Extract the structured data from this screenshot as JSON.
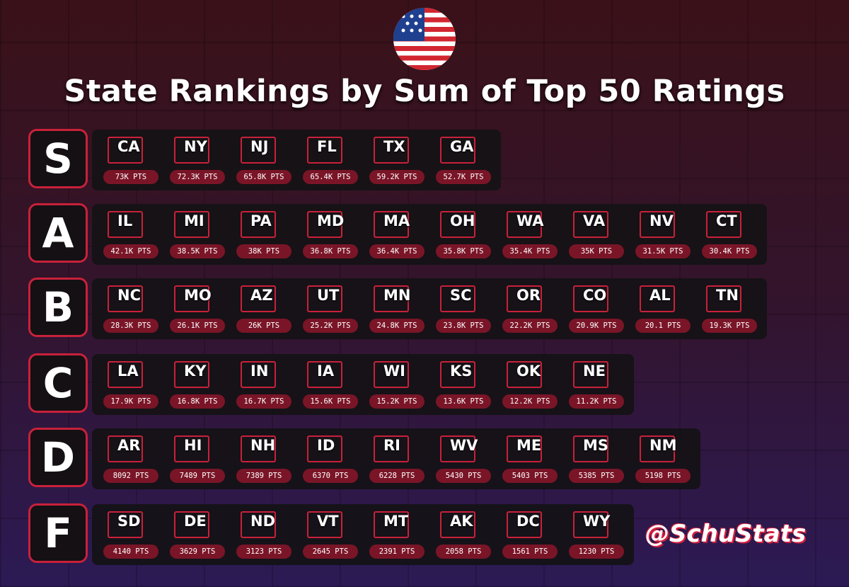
{
  "header": {
    "title": "State Rankings by Sum of Top 50 Ratings"
  },
  "tiers": [
    {
      "label": "S",
      "states": [
        {
          "code": "CA",
          "points": "73K PTS"
        },
        {
          "code": "NY",
          "points": "72.3K PTS"
        },
        {
          "code": "NJ",
          "points": "65.8K PTS"
        },
        {
          "code": "FL",
          "points": "65.4K PTS"
        },
        {
          "code": "TX",
          "points": "59.2K PTS"
        },
        {
          "code": "GA",
          "points": "52.7K PTS"
        }
      ]
    },
    {
      "label": "A",
      "states": [
        {
          "code": "IL",
          "points": "42.1K PTS"
        },
        {
          "code": "MI",
          "points": "38.5K PTS"
        },
        {
          "code": "PA",
          "points": "38K PTS"
        },
        {
          "code": "MD",
          "points": "36.8K PTS"
        },
        {
          "code": "MA",
          "points": "36.4K PTS"
        },
        {
          "code": "OH",
          "points": "35.8K PTS"
        },
        {
          "code": "WA",
          "points": "35.4K PTS"
        },
        {
          "code": "VA",
          "points": "35K PTS"
        },
        {
          "code": "NV",
          "points": "31.5K PTS"
        },
        {
          "code": "CT",
          "points": "30.4K PTS"
        }
      ]
    },
    {
      "label": "B",
      "states": [
        {
          "code": "NC",
          "points": "28.3K PTS"
        },
        {
          "code": "MO",
          "points": "26.1K PTS"
        },
        {
          "code": "AZ",
          "points": "26K PTS"
        },
        {
          "code": "UT",
          "points": "25.2K PTS"
        },
        {
          "code": "MN",
          "points": "24.8K PTS"
        },
        {
          "code": "SC",
          "points": "23.8K PTS"
        },
        {
          "code": "OR",
          "points": "22.2K PTS"
        },
        {
          "code": "CO",
          "points": "20.9K PTS"
        },
        {
          "code": "AL",
          "points": "20.1 PTS"
        },
        {
          "code": "TN",
          "points": "19.3K PTS"
        }
      ]
    },
    {
      "label": "C",
      "states": [
        {
          "code": "LA",
          "points": "17.9K PTS"
        },
        {
          "code": "KY",
          "points": "16.8K PTS"
        },
        {
          "code": "IN",
          "points": "16.7K PTS"
        },
        {
          "code": "IA",
          "points": "15.6K PTS"
        },
        {
          "code": "WI",
          "points": "15.2K PTS"
        },
        {
          "code": "KS",
          "points": "13.6K PTS"
        },
        {
          "code": "OK",
          "points": "12.2K PTS"
        },
        {
          "code": "NE",
          "points": "11.2K PTS"
        }
      ]
    },
    {
      "label": "D",
      "states": [
        {
          "code": "AR",
          "points": "8092 PTS"
        },
        {
          "code": "HI",
          "points": "7489 PTS"
        },
        {
          "code": "NH",
          "points": "7389 PTS"
        },
        {
          "code": "ID",
          "points": "6370 PTS"
        },
        {
          "code": "RI",
          "points": "6228 PTS"
        },
        {
          "code": "WV",
          "points": "5430 PTS"
        },
        {
          "code": "ME",
          "points": "5403 PTS"
        },
        {
          "code": "MS",
          "points": "5385 PTS"
        },
        {
          "code": "NM",
          "points": "5198 PTS"
        }
      ]
    },
    {
      "label": "F",
      "states": [
        {
          "code": "SD",
          "points": "4140 PTS"
        },
        {
          "code": "DE",
          "points": "3629 PTS"
        },
        {
          "code": "ND",
          "points": "3123 PTS"
        },
        {
          "code": "VT",
          "points": "2645 PTS"
        },
        {
          "code": "MT",
          "points": "2391 PTS"
        },
        {
          "code": "AK",
          "points": "2058 PTS"
        },
        {
          "code": "DC",
          "points": "1561 PTS"
        },
        {
          "code": "WY",
          "points": "1230 PTS"
        }
      ]
    }
  ],
  "footer": {
    "handle": "@SchuStats"
  }
}
